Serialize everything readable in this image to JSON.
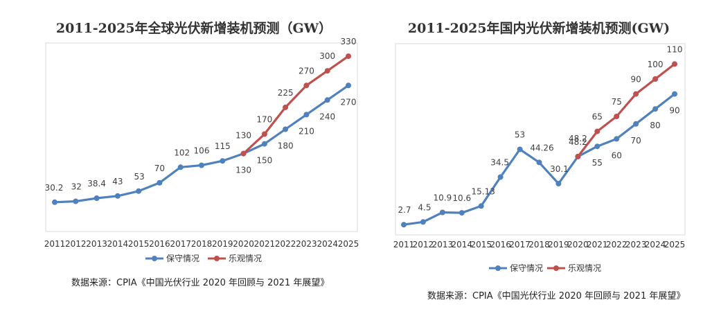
{
  "chart_data": [
    {
      "type": "line",
      "title": "2011-2025年全球光伏新增装机预测（GW）",
      "x": [
        "2011",
        "2012",
        "2013",
        "2014",
        "2015",
        "2016",
        "2017",
        "2018",
        "2019",
        "2020",
        "2021",
        "2022",
        "2023",
        "2024",
        "2025"
      ],
      "series": [
        {
          "name": "保守情况",
          "color": "#4f81bd",
          "x": [
            "2011",
            "2012",
            "2013",
            "2014",
            "2015",
            "2016",
            "2017",
            "2018",
            "2019",
            "2020",
            "2021",
            "2022",
            "2023",
            "2024",
            "2025"
          ],
          "values": [
            30.2,
            32,
            38.4,
            43,
            53,
            70,
            102,
            106,
            115,
            130,
            150,
            180,
            210,
            240,
            270
          ],
          "labels": [
            "30.2",
            "32",
            "38.4",
            "43",
            "53",
            "70",
            "102",
            "106",
            "115",
            "130",
            "150",
            "180",
            "210",
            "240",
            "270"
          ]
        },
        {
          "name": "乐观情况",
          "color": "#c0504d",
          "x": [
            "2020",
            "2021",
            "2022",
            "2023",
            "2024",
            "2025"
          ],
          "values": [
            130,
            170,
            225,
            270,
            300,
            330
          ],
          "labels": [
            "130",
            "170",
            "225",
            "270",
            "300",
            "330"
          ]
        }
      ],
      "ylim": [
        0,
        360
      ],
      "grid": false,
      "legend": "bottom",
      "source": "数据来源：CPIA《中国光伏行业 2020 年回顾与 2021 年展望》"
    },
    {
      "type": "line",
      "title": "2011-2025年国内光伏新增装机预测(GW)",
      "x": [
        "2011",
        "2012",
        "2013",
        "2014",
        "2015",
        "2016",
        "2017",
        "2018",
        "2019",
        "2020",
        "2021",
        "2022",
        "2023",
        "2024",
        "2025"
      ],
      "series": [
        {
          "name": "保守情况",
          "color": "#4f81bd",
          "x": [
            "2011",
            "2012",
            "2013",
            "2014",
            "2015",
            "2016",
            "2017",
            "2018",
            "2019",
            "2020",
            "2021",
            "2022",
            "2023",
            "2024",
            "2025"
          ],
          "values": [
            2.7,
            4.5,
            10.9,
            10.6,
            15.13,
            34.5,
            53,
            44.26,
            30.1,
            48.2,
            55,
            60,
            70,
            80,
            90
          ],
          "labels": [
            "2.7",
            "4.5",
            "10.9",
            "10.6",
            "15.13",
            "34.5",
            "53",
            "44.26",
            "30.1",
            "48.2",
            "55",
            "60",
            "70",
            "80",
            "90"
          ]
        },
        {
          "name": "乐观情况",
          "color": "#c0504d",
          "x": [
            "2020",
            "2021",
            "2022",
            "2023",
            "2024",
            "2025"
          ],
          "values": [
            48.2,
            65,
            75,
            90,
            100,
            110
          ],
          "labels": [
            "48.2",
            "65",
            "75",
            "90",
            "100",
            "110"
          ]
        }
      ],
      "ylim": [
        0,
        125
      ],
      "grid": false,
      "legend": "bottom",
      "source": "数据来源：CPIA《中国光伏行业 2020 年回顾与 2021 年展望》"
    }
  ]
}
